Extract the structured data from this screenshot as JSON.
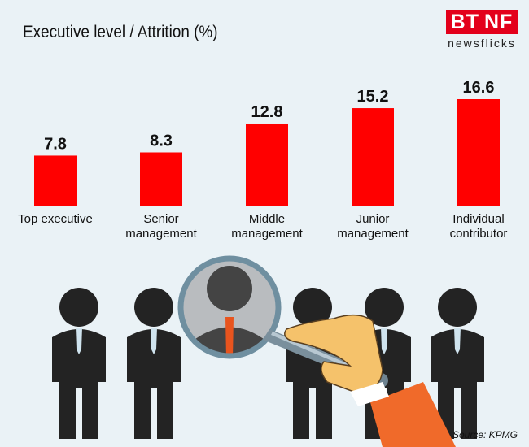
{
  "header": {
    "title": "Executive level / Attrition (%)"
  },
  "logo": {
    "brand": "BT NF",
    "tagline": "newsflicks"
  },
  "footer": {
    "source": "Source: KPMG"
  },
  "colors": {
    "bar": "#ff0000",
    "background": "#eaf2f6",
    "figure": "#232323",
    "tie": "#cfe3ee",
    "highlight_tie": "#e8541e",
    "hand": "#f5c26b",
    "sleeve": "#f06a2a"
  },
  "illustration": {
    "figures": 6,
    "icons": [
      "person-icon",
      "magnifying-glass-icon",
      "hand-icon"
    ]
  },
  "chart_data": {
    "type": "bar",
    "categories": [
      "Top executive",
      "Senior management",
      "Middle management",
      "Junior management",
      "Individual contributor"
    ],
    "category_lines": [
      [
        "Top executive"
      ],
      [
        "Senior",
        "management"
      ],
      [
        "Middle",
        "management"
      ],
      [
        "Junior",
        "management"
      ],
      [
        "Individual",
        "contributor"
      ]
    ],
    "values": [
      7.8,
      8.3,
      12.8,
      15.2,
      16.6
    ],
    "value_labels": [
      "7.8",
      "8.3",
      "12.8",
      "15.2",
      "16.6"
    ],
    "title": "Executive level / Attrition (%)",
    "xlabel": "",
    "ylabel": "",
    "ylim": [
      0,
      16.6
    ],
    "grid": false,
    "legend": "none"
  }
}
